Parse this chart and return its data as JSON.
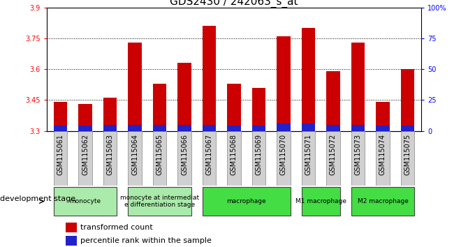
{
  "title": "GDS2430 / 242063_s_at",
  "samples": [
    "GSM115061",
    "GSM115062",
    "GSM115063",
    "GSM115064",
    "GSM115065",
    "GSM115066",
    "GSM115067",
    "GSM115068",
    "GSM115069",
    "GSM115070",
    "GSM115071",
    "GSM115072",
    "GSM115073",
    "GSM115074",
    "GSM115075"
  ],
  "red_values": [
    3.44,
    3.43,
    3.46,
    3.73,
    3.53,
    3.63,
    3.81,
    3.53,
    3.51,
    3.76,
    3.8,
    3.59,
    3.73,
    3.44,
    3.6
  ],
  "blue_heights": [
    0.025,
    0.025,
    0.028,
    0.028,
    0.028,
    0.028,
    0.028,
    0.025,
    0.025,
    0.035,
    0.035,
    0.028,
    0.028,
    0.025,
    0.025
  ],
  "y_min": 3.3,
  "y_max": 3.9,
  "y_ticks_left": [
    3.3,
    3.45,
    3.6,
    3.75,
    3.9
  ],
  "y_ticks_right": [
    0,
    25,
    50,
    75,
    100
  ],
  "bar_width": 0.55,
  "red_color": "#CC0000",
  "blue_color": "#2222CC",
  "tick_fontsize": 7,
  "title_fontsize": 11,
  "label_fontsize": 8,
  "groups": [
    {
      "label": "monocyte",
      "start": 0,
      "end": 2,
      "color": "#AAEAAA"
    },
    {
      "label": "monocyte at intermediat\ne differentiation stage",
      "start": 3,
      "end": 5,
      "color": "#AAEAAA"
    },
    {
      "label": "macrophage",
      "start": 6,
      "end": 9,
      "color": "#44DD44"
    },
    {
      "label": "M1 macrophage",
      "start": 10,
      "end": 11,
      "color": "#44DD44"
    },
    {
      "label": "M2 macrophage",
      "start": 12,
      "end": 14,
      "color": "#44DD44"
    }
  ],
  "legend_red": "transformed count",
  "legend_blue": "percentile rank within the sample",
  "dev_stage_label": "development stage"
}
